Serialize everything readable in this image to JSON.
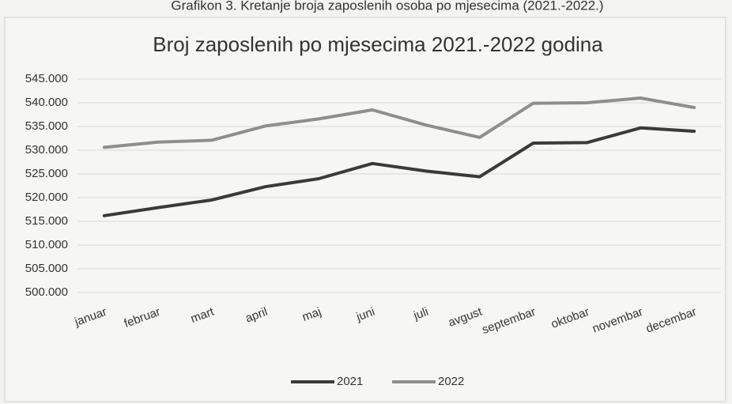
{
  "chart_data": {
    "type": "line",
    "caption": "Grafikon 3. Kretanje broja zaposlenih osoba po mjesecima (2021.-2022.)",
    "title": "Broj zaposlenih po mjesecima 2021.-2022 godina",
    "categories": [
      "januar",
      "februar",
      "mart",
      "april",
      "maj",
      "juni",
      "juli",
      "avgust",
      "septembar",
      "oktobar",
      "novembar",
      "decembar"
    ],
    "series": [
      {
        "name": "2021",
        "color": "#3a3a3a",
        "values": [
          516200,
          517900,
          519500,
          522300,
          524000,
          527200,
          525600,
          524400,
          531500,
          531600,
          534700,
          534000
        ]
      },
      {
        "name": "2022",
        "color": "#8e8e8e",
        "values": [
          530600,
          531700,
          532100,
          535100,
          536600,
          538500,
          535300,
          532700,
          539900,
          540000,
          541000,
          539000
        ]
      }
    ],
    "ylim": [
      500000,
      545000
    ],
    "yticks": [
      {
        "value": 500000,
        "label": "500.000"
      },
      {
        "value": 505000,
        "label": "505.000"
      },
      {
        "value": 510000,
        "label": "510.000"
      },
      {
        "value": 515000,
        "label": "515.000"
      },
      {
        "value": 520000,
        "label": "520.000"
      },
      {
        "value": 525000,
        "label": "525.000"
      },
      {
        "value": 530000,
        "label": "530.000"
      },
      {
        "value": 535000,
        "label": "535.000"
      },
      {
        "value": 540000,
        "label": "540.000"
      },
      {
        "value": 545000,
        "label": "545.000"
      }
    ],
    "grid": true,
    "legend": "bottom"
  }
}
